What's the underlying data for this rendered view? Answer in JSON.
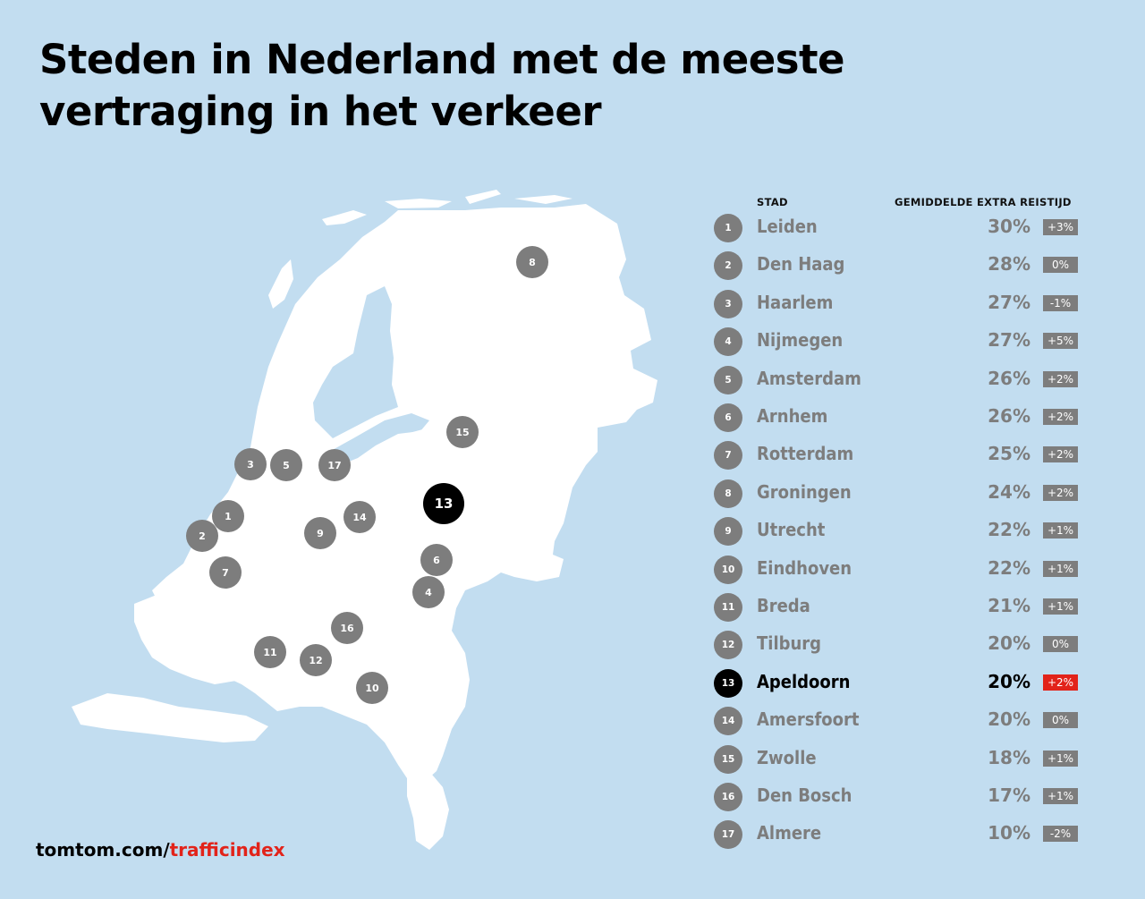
{
  "title": [
    "Steden in Nederland met de meeste",
    "vertraging in het verkeer"
  ],
  "table": {
    "col_city": "STAD",
    "col_extra": "GEMIDDELDE EXTRA REISTIJD",
    "rows": [
      {
        "rank": "1",
        "city": "Leiden",
        "pct": "30%",
        "change": "+3%",
        "highlight": false
      },
      {
        "rank": "2",
        "city": "Den Haag",
        "pct": "28%",
        "change": "0%",
        "highlight": false
      },
      {
        "rank": "3",
        "city": "Haarlem",
        "pct": "27%",
        "change": "-1%",
        "highlight": false
      },
      {
        "rank": "4",
        "city": "Nijmegen",
        "pct": "27%",
        "change": "+5%",
        "highlight": false
      },
      {
        "rank": "5",
        "city": "Amsterdam",
        "pct": "26%",
        "change": "+2%",
        "highlight": false
      },
      {
        "rank": "6",
        "city": "Arnhem",
        "pct": "26%",
        "change": "+2%",
        "highlight": false
      },
      {
        "rank": "7",
        "city": "Rotterdam",
        "pct": "25%",
        "change": "+2%",
        "highlight": false
      },
      {
        "rank": "8",
        "city": "Groningen",
        "pct": "24%",
        "change": "+2%",
        "highlight": false
      },
      {
        "rank": "9",
        "city": "Utrecht",
        "pct": "22%",
        "change": "+1%",
        "highlight": false
      },
      {
        "rank": "10",
        "city": "Eindhoven",
        "pct": "22%",
        "change": "+1%",
        "highlight": false
      },
      {
        "rank": "11",
        "city": "Breda",
        "pct": "21%",
        "change": "+1%",
        "highlight": false
      },
      {
        "rank": "12",
        "city": "Tilburg",
        "pct": "20%",
        "change": "0%",
        "highlight": false
      },
      {
        "rank": "13",
        "city": "Apeldoorn",
        "pct": "20%",
        "change": "+2%",
        "highlight": true
      },
      {
        "rank": "14",
        "city": "Amersfoort",
        "pct": "20%",
        "change": "0%",
        "highlight": false
      },
      {
        "rank": "15",
        "city": "Zwolle",
        "pct": "18%",
        "change": "+1%",
        "highlight": false
      },
      {
        "rank": "16",
        "city": "Den Bosch",
        "pct": "17%",
        "change": "+1%",
        "highlight": false
      },
      {
        "rank": "17",
        "city": "Almere",
        "pct": "10%",
        "change": "-2%",
        "highlight": false
      }
    ]
  },
  "map_pins": [
    "1",
    "2",
    "3",
    "4",
    "5",
    "6",
    "7",
    "8",
    "9",
    "10",
    "11",
    "12",
    "13",
    "14",
    "15",
    "16",
    "17"
  ],
  "footer": {
    "domain": "tomtom.com/",
    "path": "trafficindex"
  },
  "colors": {
    "background": "#c2ddf0",
    "land": "#ffffff",
    "badge": "#7d7d7d",
    "highlight": "#000000",
    "accent": "#e2231a"
  }
}
